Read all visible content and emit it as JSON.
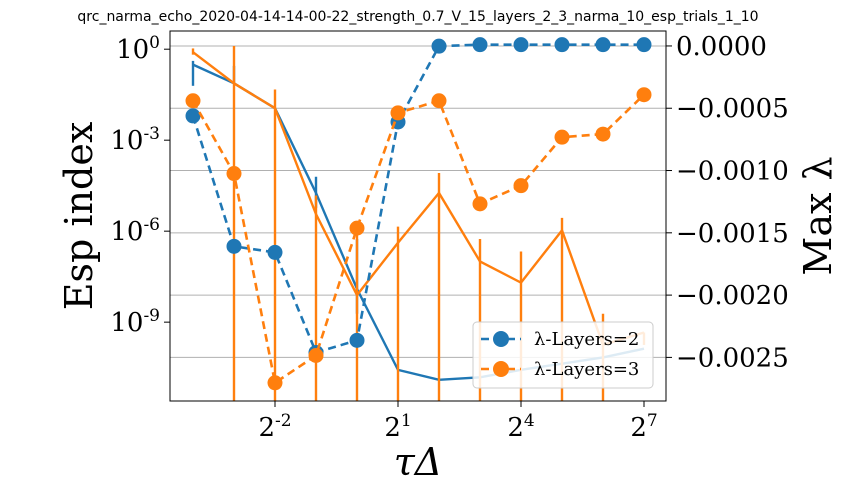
{
  "chart_data": {
    "type": "line",
    "title": "qrc_narma_echo_2020-04-14-14-00-22_strength_0.7_V_15_layers_2_3_narma_10_esp_trials_1_10",
    "xlabel": "τΔ",
    "ylabel_left": "Esp index",
    "ylabel_right": "Max λ",
    "x_scale": "log2",
    "x": [
      0.0625,
      0.125,
      0.25,
      0.5,
      1,
      2,
      4,
      8,
      16,
      32,
      64,
      128
    ],
    "x_ticks": [
      {
        "value": 0.25,
        "base": "2",
        "exp": "-2"
      },
      {
        "value": 2,
        "base": "2",
        "exp": "1"
      },
      {
        "value": 16,
        "base": "2",
        "exp": "4"
      },
      {
        "value": 128,
        "base": "2",
        "exp": "7"
      }
    ],
    "left_axis": {
      "scale": "log10",
      "ylim_exp": [
        -11.6,
        0.6
      ],
      "ticks": [
        {
          "exp": 0,
          "base": "10",
          "sup": "0"
        },
        {
          "exp": -3,
          "base": "10",
          "sup": "-3"
        },
        {
          "exp": -6,
          "base": "10",
          "sup": "-6"
        },
        {
          "exp": -9,
          "base": "10",
          "sup": "-9"
        }
      ]
    },
    "right_axis": {
      "ylim": [
        -0.00285,
        0.00012
      ],
      "ticks": [
        {
          "value": 0,
          "label": "0.0000"
        },
        {
          "value": -0.0005,
          "label": "−0.0005"
        },
        {
          "value": -0.001,
          "label": "−0.0010"
        },
        {
          "value": -0.0015,
          "label": "−0.0015"
        },
        {
          "value": -0.002,
          "label": "−0.0020"
        },
        {
          "value": -0.0025,
          "label": "−0.0025"
        }
      ]
    },
    "grid": "horizontal, right axis",
    "legend_position": "lower-right",
    "series": [
      {
        "name": "λ-Layers=2",
        "color": "#1f77b4",
        "esp_index_exp": [
          -2.2,
          -6.5,
          -6.7,
          -10.0,
          -9.6,
          -2.4,
          0.1,
          0.15,
          0.15,
          0.15,
          0.15,
          0.15
        ],
        "max_lambda": [
          -0.00015,
          -0.0003,
          -0.0005,
          -0.00118,
          -0.00195,
          -0.0026,
          -0.00268,
          -0.00266,
          -0.0026,
          -0.00255,
          -0.0025,
          -0.00243
        ],
        "max_lambda_err": [
          [
            -0.00032,
            -0.00012
          ],
          [
            -0.0003,
            -0.00016
          ],
          [
            -0.0005,
            -0.0005
          ],
          [
            -0.0013,
            -0.00105
          ],
          [
            -0.00215,
            -0.00155
          ],
          null,
          null,
          null,
          null,
          null,
          null,
          null
        ]
      },
      {
        "name": "λ-Layers=3",
        "color": "#ff7f0e",
        "esp_index_exp": [
          -1.7,
          -4.1,
          -11.0,
          -10.1,
          -5.9,
          -2.1,
          -1.7,
          -5.1,
          -4.5,
          -2.9,
          -2.8,
          -1.5
        ],
        "max_lambda": [
          -5e-05,
          -0.0003,
          -0.0005,
          -0.00135,
          -0.002,
          -0.00158,
          -0.00118,
          -0.00173,
          -0.0019,
          -0.00148,
          -0.0024,
          -0.0023
        ],
        "max_lambda_err": [
          [
            -7e-05,
            -2e-05
          ],
          [
            -0.00285,
            0.0
          ],
          [
            -0.00285,
            -0.00035
          ],
          [
            -0.00285,
            -0.0012
          ],
          [
            -0.00285,
            -0.00148
          ],
          [
            -0.00285,
            -0.00145
          ],
          [
            -0.00285,
            -0.00102
          ],
          [
            -0.00285,
            -0.00155
          ],
          [
            -0.00285,
            -0.00165
          ],
          [
            -0.00285,
            -0.00138
          ],
          [
            -0.00285,
            -0.00215
          ],
          [
            -0.0024,
            -0.0023
          ]
        ]
      }
    ]
  }
}
